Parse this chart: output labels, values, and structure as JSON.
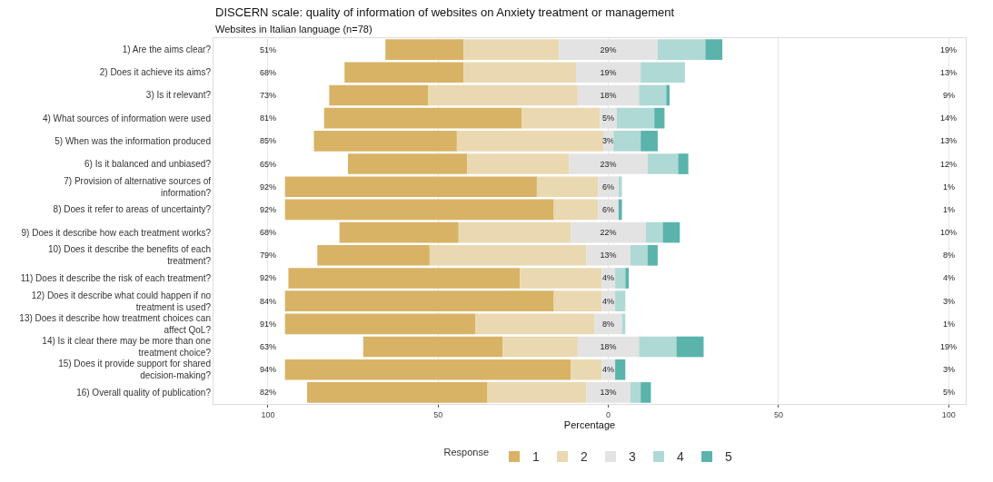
{
  "chart_data": {
    "type": "bar",
    "orientation": "horizontal",
    "title": "DISCERN scale: quality of information of websites on Anxiety treatment or management",
    "subtitle": "Websites in Italian language (n=78)",
    "xlabel": "Percentage",
    "legend_title": "Response",
    "legend": "bottom",
    "grid": "x",
    "xlim": [
      -116,
      105
    ],
    "xticks": [
      {
        "value": -100,
        "label": "100"
      },
      {
        "value": -50,
        "label": "50"
      },
      0,
      50,
      100
    ],
    "categories": [
      "1) Are the aims clear?",
      "2) Does it achieve its aims?",
      "3) Is it relevant?",
      "4) What sources of information were used",
      "5) When was the information produced",
      "6) Is it balanced and unbiased?",
      "7) Provision of alternative sources of\ninformation?",
      "8) Does it refer to areas of uncertainty?",
      "9) Does it describe how each treatment works?",
      "10) Does it describe the benefits of each\ntreatment?",
      "11) Does it describe the risk of each treatment?",
      "12) Does it describe what could happen if no\ntreatment is used?",
      "13) Does it describe how treatment choices can\naffect QoL?",
      "14) Is it clear there may be more than one\ntreatment choice?",
      "15) Does it provide support for shared\ndecision-making?",
      "16) Overall quality of publication?"
    ],
    "series": [
      {
        "name": "1",
        "color": "#d8b365",
        "values": [
          23,
          35,
          29,
          58,
          42,
          35,
          74,
          79,
          35,
          33,
          68,
          79,
          56,
          41,
          84,
          53
        ],
        "base": [
          -65.5,
          -77.5,
          -82,
          -83.5,
          -86.5,
          -76.5,
          -95,
          -95,
          -79,
          -85.5,
          -94,
          -95,
          -95,
          -72,
          -95,
          -88.5
        ]
      },
      {
        "name": "2",
        "color": "#ead8b0",
        "values": [
          28,
          33,
          44,
          23,
          43,
          30,
          18,
          13,
          33,
          46,
          24,
          14,
          35,
          22,
          9,
          29
        ],
        "base": [
          -42.5,
          -42.5,
          -53,
          -25.5,
          -44.5,
          -41.5,
          -21,
          -16,
          -44,
          -52.5,
          -26,
          -16,
          -39,
          -31,
          -11,
          -35.5
        ]
      },
      {
        "name": "3",
        "color": "#e3e3e3",
        "values": [
          29,
          19,
          18,
          5,
          3,
          23,
          6,
          6,
          22,
          13,
          4,
          4,
          8,
          18,
          4,
          13
        ],
        "base": [
          -14.5,
          -9.5,
          -9,
          -2.5,
          -1.5,
          -11.5,
          -3,
          -3,
          -11,
          -6.5,
          -2,
          -2,
          -4,
          -9,
          -2,
          -6.5
        ],
        "value_labels": [
          "29%",
          "19%",
          "18%",
          "5%",
          "3%",
          "23%",
          "6%",
          "6%",
          "22%",
          "13%",
          "4%",
          "4%",
          "8%",
          "18%",
          "4%",
          "13%"
        ]
      },
      {
        "name": "4",
        "color": "#afd9d5",
        "values": [
          14,
          13,
          8,
          11,
          8,
          9,
          1,
          0,
          5,
          5,
          3,
          3,
          1,
          11,
          0,
          3
        ],
        "base": [
          14.5,
          9.5,
          9,
          2.5,
          1.5,
          11.5,
          3,
          null,
          11,
          6.5,
          2,
          2,
          4,
          9,
          null,
          6.5
        ]
      },
      {
        "name": "5",
        "color": "#5ab4ac",
        "values": [
          5,
          0,
          1,
          3,
          5,
          3,
          0,
          1,
          5,
          3,
          1,
          0,
          0,
          8,
          3,
          3
        ],
        "base": [
          28.5,
          null,
          17,
          13.5,
          9.5,
          20.5,
          null,
          3,
          16,
          11.5,
          5,
          null,
          null,
          20,
          2,
          9.5
        ]
      }
    ],
    "annotations": [
      "51%",
      "68%",
      "73%",
      "81%",
      "85%",
      "65%",
      "92%",
      "92%",
      "68%",
      "79%",
      "92%",
      "84%",
      "91%",
      "63%",
      "94%",
      "82%",
      "19%",
      "13%",
      "9%",
      "14%",
      "13%",
      "12%",
      "1%",
      "1%",
      "10%",
      "8%",
      "4%",
      "3%",
      "1%",
      "19%",
      "3%",
      "5%"
    ]
  }
}
